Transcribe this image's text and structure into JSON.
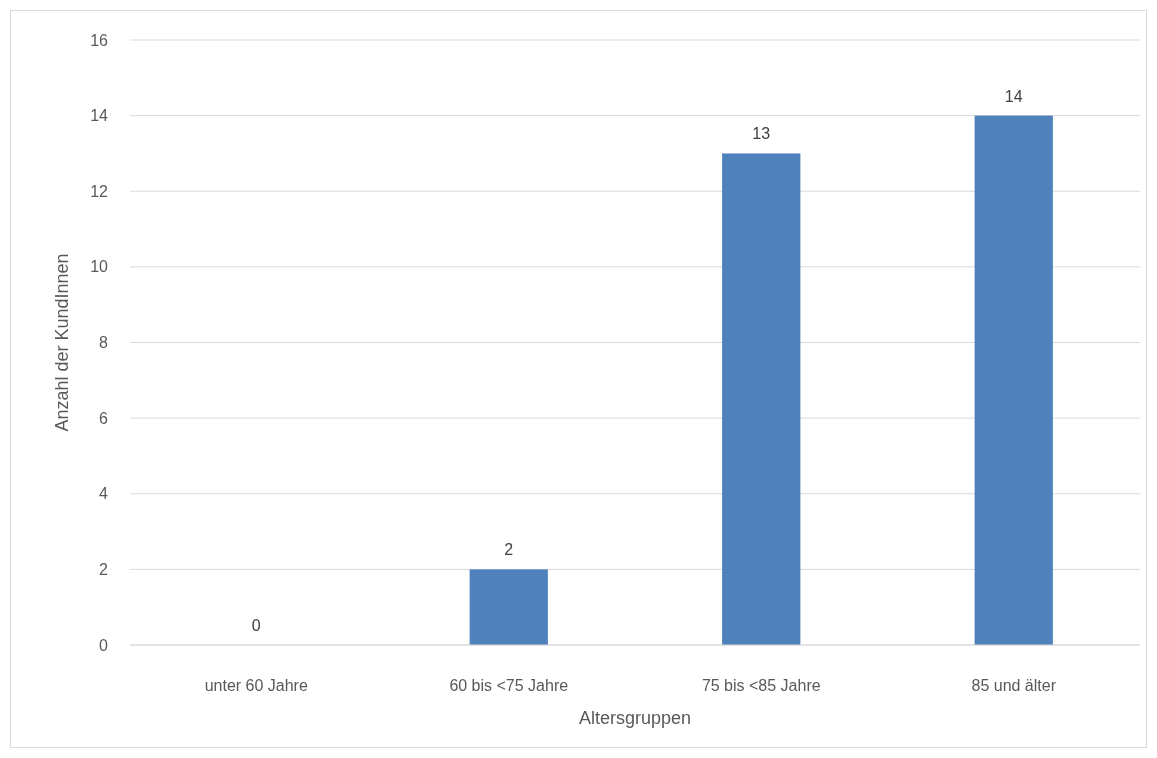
{
  "chart_data": {
    "type": "bar",
    "xlabel": "Altersgruppen",
    "ylabel": "Anzahl der KundInnen",
    "categories": [
      "unter 60 Jahre",
      "60 bis <75 Jahre",
      "75 bis <85 Jahre",
      "85 und älter"
    ],
    "values": [
      0,
      2,
      13,
      14
    ],
    "color": "#4f81bd",
    "ylim": [
      0,
      16
    ],
    "yticks": [
      0,
      2,
      4,
      6,
      8,
      10,
      12,
      14,
      16
    ],
    "grid": "y",
    "data_labels": true
  }
}
